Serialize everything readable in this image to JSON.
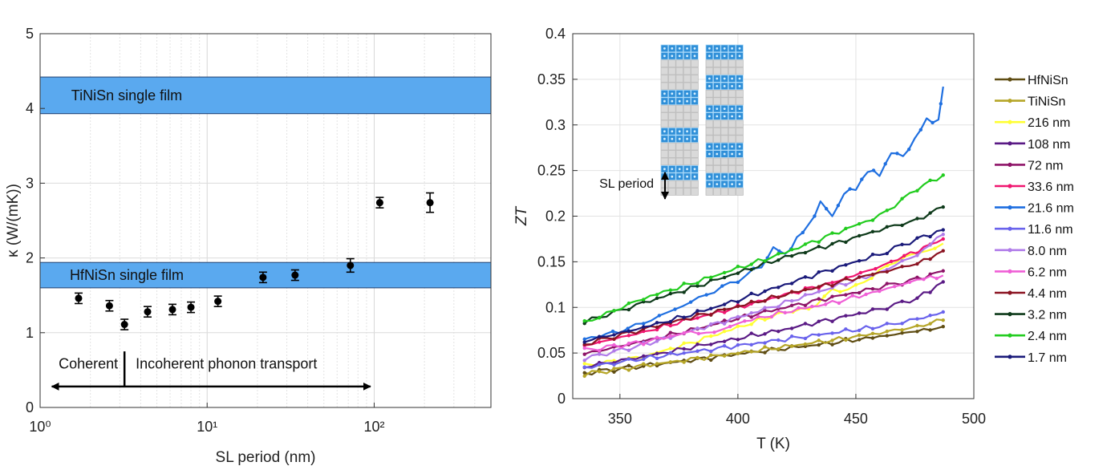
{
  "chart_data": [
    {
      "type": "scatter",
      "xscale": "log",
      "xlabel": "SL period (nm)",
      "ylabel": "κ (W/(mK))",
      "xlim": [
        1,
        500
      ],
      "ylim": [
        0,
        5
      ],
      "xticks": [
        "10⁰",
        "10¹",
        "10²"
      ],
      "yticks": [
        "0",
        "1",
        "2",
        "3",
        "4",
        "5"
      ],
      "grid": "log-minor vertical, major horizontal",
      "bands": [
        {
          "label": "TiNiSn single film",
          "y0": 3.93,
          "y1": 4.42,
          "color": "#5aa9ef"
        },
        {
          "label": "HfNiSn single film",
          "y0": 1.6,
          "y1": 1.94,
          "color": "#5aa9ef"
        }
      ],
      "points": [
        {
          "x": 1.7,
          "y": 1.46,
          "err": 0.07
        },
        {
          "x": 2.6,
          "y": 1.36,
          "err": 0.07
        },
        {
          "x": 3.2,
          "y": 1.11,
          "err": 0.07
        },
        {
          "x": 4.4,
          "y": 1.28,
          "err": 0.07
        },
        {
          "x": 6.2,
          "y": 1.31,
          "err": 0.07
        },
        {
          "x": 8.0,
          "y": 1.34,
          "err": 0.07
        },
        {
          "x": 11.6,
          "y": 1.42,
          "err": 0.07
        },
        {
          "x": 21.6,
          "y": 1.74,
          "err": 0.07
        },
        {
          "x": 33.6,
          "y": 1.77,
          "err": 0.07
        },
        {
          "x": 72,
          "y": 1.9,
          "err": 0.09
        },
        {
          "x": 108,
          "y": 2.74,
          "err": 0.07
        },
        {
          "x": 216,
          "y": 2.74,
          "err": 0.13
        }
      ],
      "annotations": {
        "coherent": "Coherent",
        "incoherent": "Incoherent phonon transport"
      },
      "arrow_x": [
        1.1,
        95
      ],
      "arrow_y": 0.28,
      "divider_x": 3.2
    },
    {
      "type": "line",
      "xlabel": "T (K)",
      "ylabel": "ZT",
      "xlim": [
        330,
        500
      ],
      "ylim": [
        0,
        0.4
      ],
      "xticks": [
        "350",
        "400",
        "450",
        "500"
      ],
      "yticks": [
        "0",
        "0.05",
        "0.1",
        "0.15",
        "0.2",
        "0.25",
        "0.3",
        "0.35",
        "0.4"
      ],
      "grid": "on",
      "legend_position": "right",
      "inset_label": "SL period",
      "series": [
        {
          "name": "HfNiSn",
          "color": "#5f4d13",
          "values": [
            [
              335,
              0.028
            ],
            [
              360,
              0.036
            ],
            [
              380,
              0.042
            ],
            [
              400,
              0.049
            ],
            [
              420,
              0.055
            ],
            [
              440,
              0.061
            ],
            [
              460,
              0.068
            ],
            [
              476,
              0.074
            ],
            [
              487,
              0.079
            ]
          ]
        },
        {
          "name": "TiNiSn",
          "color": "#b6a628",
          "values": [
            [
              335,
              0.027
            ],
            [
              360,
              0.036
            ],
            [
              380,
              0.043
            ],
            [
              400,
              0.05
            ],
            [
              420,
              0.057
            ],
            [
              440,
              0.064
            ],
            [
              460,
              0.072
            ],
            [
              476,
              0.079
            ],
            [
              487,
              0.086
            ]
          ]
        },
        {
          "name": "216 nm",
          "color": "#ffff33",
          "values": [
            [
              335,
              0.036
            ],
            [
              360,
              0.046
            ],
            [
              380,
              0.061
            ],
            [
              400,
              0.078
            ],
            [
              420,
              0.095
            ],
            [
              430,
              0.098
            ],
            [
              440,
              0.118
            ],
            [
              450,
              0.122
            ],
            [
              460,
              0.14
            ],
            [
              470,
              0.155
            ],
            [
              480,
              0.162
            ],
            [
              487,
              0.17
            ]
          ]
        },
        {
          "name": "108 nm",
          "color": "#5a1a85",
          "values": [
            [
              335,
              0.035
            ],
            [
              360,
              0.046
            ],
            [
              380,
              0.056
            ],
            [
              400,
              0.066
            ],
            [
              420,
              0.076
            ],
            [
              440,
              0.087
            ],
            [
              460,
              0.098
            ],
            [
              476,
              0.11
            ],
            [
              487,
              0.128
            ]
          ]
        },
        {
          "name": "72 nm",
          "color": "#8e1468",
          "values": [
            [
              335,
              0.049
            ],
            [
              360,
              0.063
            ],
            [
              380,
              0.075
            ],
            [
              400,
              0.088
            ],
            [
              420,
              0.1
            ],
            [
              440,
              0.111
            ],
            [
              460,
              0.122
            ],
            [
              476,
              0.131
            ],
            [
              487,
              0.14
            ]
          ]
        },
        {
          "name": "33.6 nm",
          "color": "#f01670",
          "values": [
            [
              335,
              0.058
            ],
            [
              360,
              0.073
            ],
            [
              380,
              0.087
            ],
            [
              400,
              0.1
            ],
            [
              420,
              0.114
            ],
            [
              440,
              0.127
            ],
            [
              455,
              0.14
            ],
            [
              465,
              0.15
            ],
            [
              476,
              0.162
            ],
            [
              487,
              0.175
            ]
          ]
        },
        {
          "name": "21.6 nm",
          "color": "#1f6fe0",
          "values": [
            [
              335,
              0.065
            ],
            [
              350,
              0.074
            ],
            [
              360,
              0.083
            ],
            [
              370,
              0.094
            ],
            [
              380,
              0.106
            ],
            [
              390,
              0.118
            ],
            [
              400,
              0.13
            ],
            [
              410,
              0.145
            ],
            [
              415,
              0.165
            ],
            [
              420,
              0.158
            ],
            [
              425,
              0.175
            ],
            [
              430,
              0.19
            ],
            [
              435,
              0.215
            ],
            [
              440,
              0.2
            ],
            [
              445,
              0.225
            ],
            [
              450,
              0.23
            ],
            [
              455,
              0.25
            ],
            [
              460,
              0.245
            ],
            [
              465,
              0.27
            ],
            [
              470,
              0.265
            ],
            [
              475,
              0.285
            ],
            [
              480,
              0.305
            ],
            [
              485,
              0.305
            ],
            [
              487,
              0.342
            ]
          ]
        },
        {
          "name": "11.6 nm",
          "color": "#6a63ec",
          "values": [
            [
              335,
              0.034
            ],
            [
              360,
              0.044
            ],
            [
              380,
              0.051
            ],
            [
              400,
              0.058
            ],
            [
              420,
              0.065
            ],
            [
              440,
              0.072
            ],
            [
              460,
              0.079
            ],
            [
              476,
              0.087
            ],
            [
              487,
              0.095
            ]
          ]
        },
        {
          "name": "8.0 nm",
          "color": "#b07be9",
          "values": [
            [
              335,
              0.044
            ],
            [
              360,
              0.059
            ],
            [
              380,
              0.074
            ],
            [
              400,
              0.089
            ],
            [
              420,
              0.105
            ],
            [
              440,
              0.122
            ],
            [
              460,
              0.138
            ],
            [
              476,
              0.158
            ],
            [
              487,
              0.18
            ]
          ]
        },
        {
          "name": "6.2 nm",
          "color": "#ef5fd6",
          "values": [
            [
              335,
              0.053
            ],
            [
              360,
              0.062
            ],
            [
              380,
              0.073
            ],
            [
              390,
              0.072
            ],
            [
              400,
              0.083
            ],
            [
              420,
              0.095
            ],
            [
              440,
              0.105
            ],
            [
              460,
              0.118
            ],
            [
              476,
              0.13
            ],
            [
              487,
              0.135
            ]
          ]
        },
        {
          "name": "4.4 nm",
          "color": "#8b1422",
          "values": [
            [
              335,
              0.06
            ],
            [
              360,
              0.076
            ],
            [
              380,
              0.089
            ],
            [
              400,
              0.101
            ],
            [
              420,
              0.114
            ],
            [
              440,
              0.126
            ],
            [
              460,
              0.138
            ],
            [
              476,
              0.148
            ],
            [
              487,
              0.162
            ]
          ]
        },
        {
          "name": "3.2 nm",
          "color": "#0e3a1a",
          "values": [
            [
              335,
              0.084
            ],
            [
              360,
              0.105
            ],
            [
              380,
              0.121
            ],
            [
              400,
              0.138
            ],
            [
              420,
              0.155
            ],
            [
              440,
              0.169
            ],
            [
              460,
              0.185
            ],
            [
              476,
              0.196
            ],
            [
              487,
              0.21
            ]
          ]
        },
        {
          "name": "2.4 nm",
          "color": "#22cc1f",
          "values": [
            [
              335,
              0.083
            ],
            [
              360,
              0.11
            ],
            [
              380,
              0.126
            ],
            [
              400,
              0.143
            ],
            [
              420,
              0.16
            ],
            [
              440,
              0.18
            ],
            [
              460,
              0.2
            ],
            [
              476,
              0.23
            ],
            [
              487,
              0.245
            ]
          ]
        },
        {
          "name": "1.7 nm",
          "color": "#1a1a7a",
          "values": [
            [
              335,
              0.063
            ],
            [
              360,
              0.078
            ],
            [
              380,
              0.092
            ],
            [
              400,
              0.108
            ],
            [
              420,
              0.125
            ],
            [
              440,
              0.142
            ],
            [
              460,
              0.158
            ],
            [
              476,
              0.175
            ],
            [
              487,
              0.185
            ]
          ]
        }
      ]
    }
  ]
}
